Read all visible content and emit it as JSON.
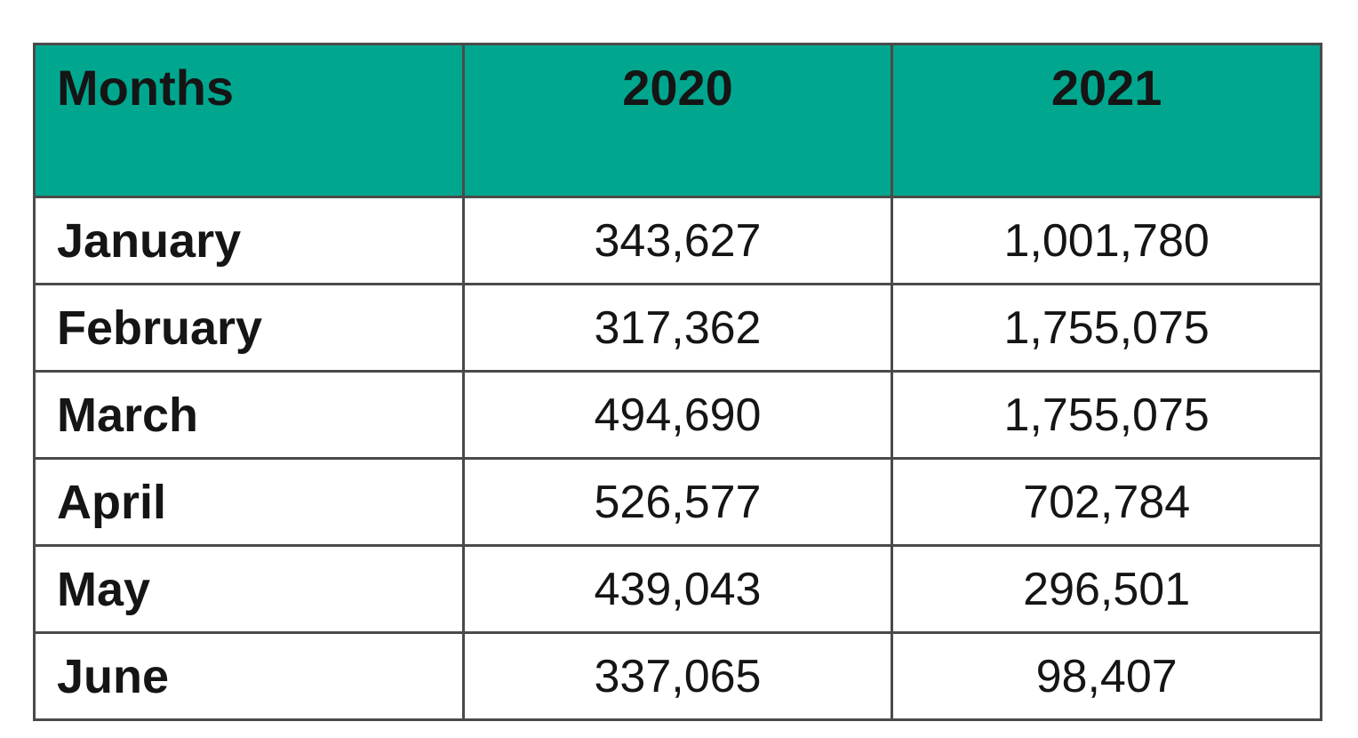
{
  "table": {
    "header": {
      "months_label": "Months",
      "year_2020_label": "2020",
      "year_2021_label": "2021"
    },
    "rows": [
      {
        "month": "January",
        "v2020": "343,627",
        "v2021": "1,001,780"
      },
      {
        "month": "February",
        "v2020": "317,362",
        "v2021": "1,755,075"
      },
      {
        "month": "March",
        "v2020": "494,690",
        "v2021": "1,755,075"
      },
      {
        "month": "April",
        "v2020": "526,577",
        "v2021": "702,784"
      },
      {
        "month": "May",
        "v2020": "439,043",
        "v2021": "296,501"
      },
      {
        "month": "June",
        "v2020": "337,065",
        "v2021": "98,407"
      }
    ],
    "colors": {
      "header_background": "#00a78e",
      "header_text": "#151515",
      "cell_text": "#1c1c1c",
      "border": "#4a4a4a",
      "page_background": "#ffffff"
    }
  },
  "chart_data": {
    "type": "table",
    "title": "",
    "categories": [
      "January",
      "February",
      "March",
      "April",
      "May",
      "June"
    ],
    "series": [
      {
        "name": "2020",
        "values": [
          343627,
          317362,
          494690,
          526577,
          439043,
          337065
        ]
      },
      {
        "name": "2021",
        "values": [
          1001780,
          1755075,
          1755075,
          702784,
          296501,
          98407
        ]
      }
    ],
    "layout_hints": {
      "columns": [
        "Months",
        "2020",
        "2021"
      ],
      "header_fill": "#00a78e",
      "grid": "on",
      "month_column_align": "left",
      "value_columns_align": "center"
    }
  }
}
